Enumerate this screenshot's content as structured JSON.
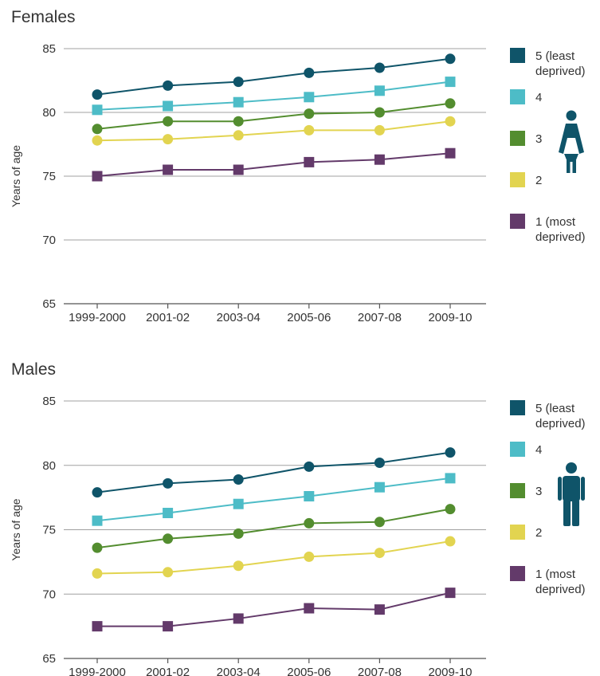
{
  "colors": {
    "q5": "#0f5469",
    "q4": "#4dbcc7",
    "q3": "#538d2f",
    "q2": "#e2d450",
    "q1": "#633a6a",
    "grid": "#a0a0a0",
    "axis": "#555555",
    "icon": "#0f5469"
  },
  "chart_data": [
    {
      "type": "line",
      "title": "Females",
      "ylabel": "Years of age",
      "xlabel": "",
      "categories": [
        "1999-2000",
        "2001-02",
        "2003-04",
        "2005-06",
        "2007-08",
        "2009-10"
      ],
      "ylim": [
        65,
        85
      ],
      "yticks": [
        65,
        70,
        75,
        80,
        85
      ],
      "grid": true,
      "legend_position": "right",
      "icon": "female-icon",
      "series": [
        {
          "name": "5 (least deprived)",
          "label_lines": [
            "5 (least",
            "deprived)"
          ],
          "color_key": "q5",
          "marker": "circle",
          "values": [
            81.4,
            82.1,
            82.4,
            83.1,
            83.5,
            84.2
          ]
        },
        {
          "name": "4",
          "label_lines": [
            "4"
          ],
          "color_key": "q4",
          "marker": "square",
          "values": [
            80.2,
            80.5,
            80.8,
            81.2,
            81.7,
            82.4
          ]
        },
        {
          "name": "3",
          "label_lines": [
            "3"
          ],
          "color_key": "q3",
          "marker": "circle",
          "values": [
            78.7,
            79.3,
            79.3,
            79.9,
            80.0,
            80.7
          ]
        },
        {
          "name": "2",
          "label_lines": [
            "2"
          ],
          "color_key": "q2",
          "marker": "circle",
          "values": [
            77.8,
            77.9,
            78.2,
            78.6,
            78.6,
            79.3
          ]
        },
        {
          "name": "1 (most deprived)",
          "label_lines": [
            "1 (most",
            "deprived)"
          ],
          "color_key": "q1",
          "marker": "square",
          "values": [
            75.0,
            75.5,
            75.5,
            76.1,
            76.3,
            76.8
          ]
        }
      ]
    },
    {
      "type": "line",
      "title": "Males",
      "ylabel": "Years of age",
      "xlabel": "",
      "categories": [
        "1999-2000",
        "2001-02",
        "2003-04",
        "2005-06",
        "2007-08",
        "2009-10"
      ],
      "ylim": [
        65,
        85
      ],
      "yticks": [
        65,
        70,
        75,
        80,
        85
      ],
      "grid": true,
      "legend_position": "right",
      "icon": "male-icon",
      "series": [
        {
          "name": "5 (least deprived)",
          "label_lines": [
            "5 (least",
            "deprived)"
          ],
          "color_key": "q5",
          "marker": "circle",
          "values": [
            77.9,
            78.6,
            78.9,
            79.9,
            80.2,
            81.0
          ]
        },
        {
          "name": "4",
          "label_lines": [
            "4"
          ],
          "color_key": "q4",
          "marker": "square",
          "values": [
            75.7,
            76.3,
            77.0,
            77.6,
            78.3,
            79.0
          ]
        },
        {
          "name": "3",
          "label_lines": [
            "3"
          ],
          "color_key": "q3",
          "marker": "circle",
          "values": [
            73.6,
            74.3,
            74.7,
            75.5,
            75.6,
            76.6
          ]
        },
        {
          "name": "2",
          "label_lines": [
            "2"
          ],
          "color_key": "q2",
          "marker": "circle",
          "values": [
            71.6,
            71.7,
            72.2,
            72.9,
            73.2,
            74.1
          ]
        },
        {
          "name": "1 (most deprived)",
          "label_lines": [
            "1 (most",
            "deprived)"
          ],
          "color_key": "q1",
          "marker": "square",
          "values": [
            67.5,
            67.5,
            68.1,
            68.9,
            68.8,
            70.1
          ]
        }
      ]
    }
  ]
}
